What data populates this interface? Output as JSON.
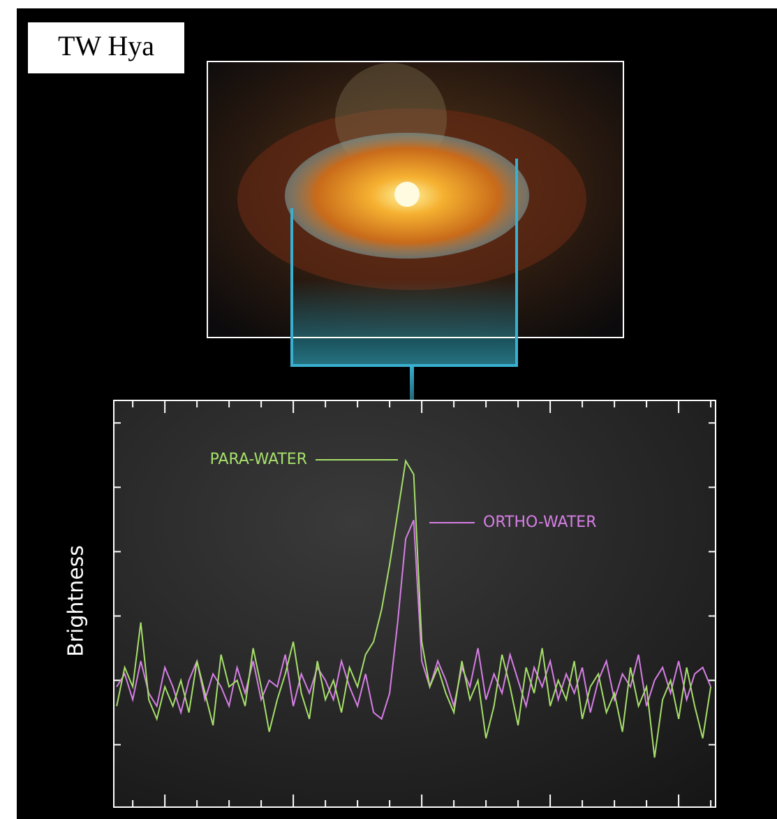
{
  "chart_data": {
    "type": "line",
    "title": "TW Hya",
    "y_label": "Brightness",
    "x": [
      -0.5,
      -0.25,
      0,
      0.25,
      0.5,
      0.75,
      1,
      1.25,
      1.5,
      1.75,
      2,
      2.25,
      2.5,
      2.75,
      3,
      3.25,
      3.5,
      3.75,
      4,
      4.25,
      4.5,
      4.75,
      5,
      5.25,
      5.5,
      5.75,
      6,
      6.25,
      6.5,
      6.75,
      7,
      7.25,
      7.5,
      7.75,
      8,
      8.25,
      8.5,
      8.75,
      9,
      9.25,
      9.5,
      9.75,
      10,
      10.25,
      10.5,
      10.75,
      11,
      11.25,
      11.5,
      11.75,
      12,
      12.25,
      12.5,
      12.75,
      13,
      13.25,
      13.5,
      13.75,
      14,
      14.25,
      14.5,
      14.75,
      15,
      15.25,
      15.5,
      15.75,
      16,
      16.25,
      16.5,
      16.75,
      17,
      17.25,
      17.5,
      17.75,
      18
    ],
    "series": [
      {
        "name": "PARA-WATER",
        "color": "#a6e06a",
        "values": [
          0.6,
          1.2,
          0.9,
          1.9,
          0.7,
          0.4,
          0.9,
          0.6,
          1.0,
          0.5,
          1.3,
          0.8,
          0.3,
          1.4,
          0.9,
          1.0,
          0.6,
          1.5,
          0.9,
          0.2,
          0.7,
          1.1,
          1.6,
          0.8,
          0.4,
          1.3,
          0.7,
          1.0,
          0.5,
          1.2,
          0.9,
          1.4,
          1.6,
          2.1,
          2.8,
          3.6,
          4.41,
          4.2,
          1.6,
          0.9,
          1.2,
          0.8,
          0.5,
          1.3,
          0.7,
          1.0,
          0.1,
          0.6,
          1.4,
          0.9,
          0.3,
          1.2,
          0.8,
          1.5,
          0.6,
          1.0,
          0.7,
          1.3,
          0.4,
          0.9,
          1.1,
          0.5,
          0.8,
          0.2,
          1.2,
          0.6,
          0.9,
          -0.2,
          0.7,
          1.0,
          0.4,
          1.2,
          0.6,
          0.1,
          0.9
        ]
      },
      {
        "name": "ORTHO-WATER",
        "color": "#d77fe6",
        "values": [
          0.9,
          1.1,
          0.7,
          1.3,
          0.8,
          0.6,
          1.2,
          0.9,
          0.5,
          1.0,
          1.3,
          0.7,
          1.1,
          0.9,
          0.6,
          1.2,
          0.8,
          1.3,
          0.7,
          1.0,
          0.9,
          1.4,
          0.6,
          1.1,
          0.8,
          1.2,
          1.0,
          0.7,
          1.3,
          0.9,
          0.6,
          1.1,
          0.5,
          0.4,
          0.8,
          1.9,
          3.2,
          3.49,
          1.3,
          0.9,
          1.3,
          1.0,
          0.6,
          1.2,
          0.9,
          1.5,
          0.7,
          1.1,
          0.8,
          1.4,
          1.0,
          0.6,
          1.2,
          0.9,
          1.3,
          0.7,
          1.1,
          0.8,
          1.2,
          0.5,
          1.0,
          1.3,
          0.7,
          1.1,
          0.9,
          1.4,
          0.6,
          1.0,
          1.2,
          0.8,
          1.3,
          0.7,
          1.1,
          1.2,
          0.9
        ]
      }
    ],
    "xlim": [
      -0.59,
      18.15
    ],
    "xticks": [
      0,
      1,
      2,
      3,
      4,
      5,
      6,
      7,
      8,
      9,
      10,
      11,
      12,
      13,
      14,
      15,
      16,
      17,
      18
    ],
    "ylim": [
      -0.97,
      5.35
    ],
    "yticks": [
      0,
      1,
      2,
      3,
      4,
      5
    ]
  }
}
